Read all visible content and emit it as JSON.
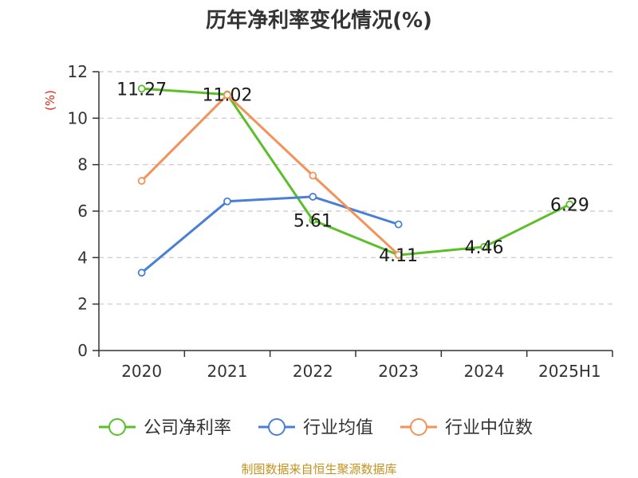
{
  "chart_data": {
    "type": "line",
    "title": "历年净利率变化情况(%)",
    "ylabel": "(%)",
    "xlabel": "",
    "categories": [
      "2020",
      "2021",
      "2022",
      "2023",
      "2024",
      "2025H1"
    ],
    "ylim": [
      0,
      12
    ],
    "yticks": [
      0,
      2,
      4,
      6,
      8,
      10,
      12
    ],
    "grid": true,
    "legend_position": "bottom",
    "series": [
      {
        "name": "公司净利率",
        "color": "#5bbf2a",
        "values": [
          11.27,
          11.02,
          5.61,
          4.11,
          4.46,
          6.29
        ],
        "labels": [
          "11.27",
          "11.02",
          "5.61",
          "4.11",
          "4.46",
          "6.29"
        ]
      },
      {
        "name": "行业均值",
        "color": "#4a7fd8",
        "values": [
          3.35,
          6.42,
          6.62,
          5.43,
          null,
          null
        ]
      },
      {
        "name": "行业中位数",
        "color": "#f39259",
        "values": [
          7.3,
          11.0,
          7.53,
          4.12,
          null,
          null
        ]
      }
    ]
  },
  "source": "制图数据来自恒生聚源数据库"
}
